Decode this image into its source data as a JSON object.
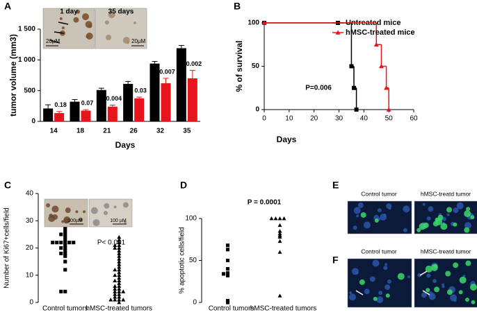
{
  "chart_data": [
    {
      "type": "bar",
      "panel": "A",
      "ylabel": "tumor volume (mm3)",
      "xlabel": "Days",
      "categories": [
        "14",
        "18",
        "21",
        "26",
        "32",
        "35"
      ],
      "series": [
        {
          "name": "Untreated",
          "color": "#000000",
          "values": [
            210,
            320,
            510,
            610,
            940,
            1190
          ],
          "errors": [
            60,
            35,
            30,
            40,
            35,
            45
          ]
        },
        {
          "name": "hMSC-treated",
          "color": "#e8141b",
          "values": [
            135,
            175,
            240,
            375,
            620,
            700
          ],
          "errors": [
            25,
            15,
            25,
            20,
            80,
            130
          ]
        }
      ],
      "p_values": [
        "0.18",
        "0.07",
        "0.004",
        "0.03",
        "0.007",
        "0.002"
      ],
      "ylim": [
        0,
        1500
      ],
      "yticks": [
        0,
        500,
        {
          "value": 1000,
          "label": "1 000"
        },
        {
          "value": 1500,
          "label": "1 500"
        }
      ],
      "insets": [
        {
          "label": "1 day",
          "scale": "20µM"
        },
        {
          "label": "35 days",
          "scale": "20µM"
        }
      ]
    },
    {
      "type": "line",
      "step": true,
      "panel": "B",
      "ylabel": "% of survival",
      "xlabel": "Days",
      "legend": "top-right",
      "series": [
        {
          "name": "Untreated mice",
          "color": "#000000",
          "marker": "square",
          "x": [
            0,
            35,
            36,
            37
          ],
          "values": [
            100,
            50,
            25,
            0
          ]
        },
        {
          "name": "hMSC-treated mice",
          "color": "#e8141b",
          "marker": "triangle",
          "x": [
            0,
            45,
            47,
            49,
            50
          ],
          "values": [
            100,
            75,
            50,
            25,
            0
          ]
        }
      ],
      "annotation": "P=0.006",
      "xlim": [
        0,
        60
      ],
      "xticks": [
        0,
        10,
        20,
        30,
        40,
        50,
        60
      ],
      "ylim": [
        0,
        100
      ],
      "yticks": [
        0,
        50,
        100
      ]
    },
    {
      "type": "scatter",
      "panel": "C",
      "ylabel": "Number of Ki67+cells/field",
      "categories": [
        "Control tumors",
        "hMSC-treated tumors"
      ],
      "markers": [
        "square",
        "triangle"
      ],
      "values": [
        [
          31,
          29,
          28,
          27,
          26,
          25,
          25,
          24,
          23,
          22,
          22,
          22,
          22,
          22,
          22,
          21,
          20,
          20,
          19,
          18,
          18,
          17,
          15,
          12,
          4,
          4
        ],
        [
          24,
          23,
          22,
          21,
          21,
          20,
          20,
          19,
          18,
          17,
          16,
          15,
          14,
          13,
          12,
          12,
          11,
          10,
          10,
          9,
          8,
          8,
          7,
          6,
          6,
          5,
          5,
          4,
          4,
          4,
          3,
          3,
          2,
          2,
          1,
          1,
          1,
          1,
          0
        ]
      ],
      "annotation": "P< 0.001",
      "ylim": [
        0,
        40
      ],
      "yticks": [
        0,
        10,
        20,
        30,
        40
      ],
      "insets": [
        {
          "scale": "100µM"
        },
        {
          "scale": "100 µM"
        }
      ]
    },
    {
      "type": "scatter",
      "panel": "D",
      "ylabel": "% apoptotic cells/field",
      "categories": [
        "Control tumors",
        "hMSC-treated tumors"
      ],
      "markers": [
        "square",
        "triangle"
      ],
      "values": [
        [
          68,
          63,
          50,
          40,
          35,
          34,
          32,
          2,
          0
        ],
        [
          100,
          100,
          100,
          100,
          92,
          85,
          82,
          80,
          78,
          73,
          60,
          8
        ]
      ],
      "annotation": "P = 0.0001",
      "ylim": [
        0,
        100
      ],
      "yticks": [
        0,
        50,
        100
      ]
    }
  ],
  "image_panels": [
    {
      "panel": "E",
      "labels": [
        "Control tumor",
        "hMSC-treatd tumor"
      ]
    },
    {
      "panel": "F",
      "labels": [
        "Control tumor",
        "hMSC-treatd tumor"
      ]
    }
  ]
}
